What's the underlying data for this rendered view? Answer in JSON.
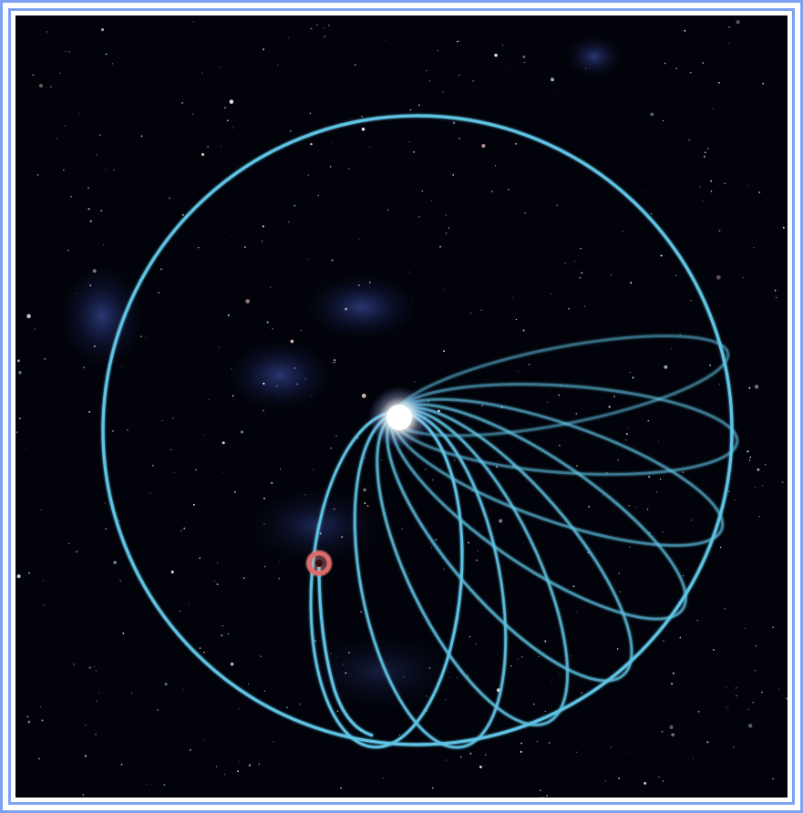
{
  "scene": {
    "background_color": "#02030a",
    "frame_color": "#7da2f2",
    "orbit_color": "#5fc3e4",
    "star_color": "#ffffff",
    "planet_color": "#e06a6a",
    "orbit_count": 8
  }
}
